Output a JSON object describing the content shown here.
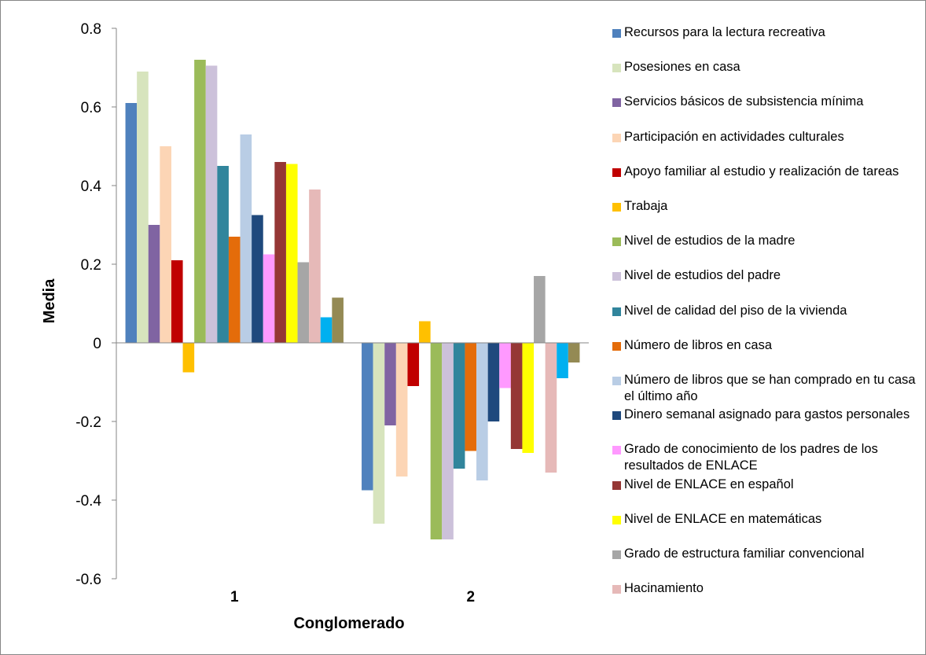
{
  "chart_data": {
    "type": "bar",
    "xlabel": "Conglomerado",
    "ylabel": "Media",
    "ylim": [
      -0.6,
      0.8
    ],
    "yticks": [
      "-0.6",
      "-0.4",
      "-0.2",
      "0",
      "0.2",
      "0.4",
      "0.6",
      "0.8"
    ],
    "categories": [
      "1",
      "2"
    ],
    "grid": false,
    "legend_position": "right",
    "series": [
      {
        "name": "Recursos para la lectura recreativa",
        "color": "#4F81BD",
        "values": [
          0.61,
          -0.375
        ]
      },
      {
        "name": "Posesiones en casa",
        "color": "#D7E4BD",
        "values": [
          0.69,
          -0.46
        ]
      },
      {
        "name": "Servicios básicos de subsistencia mínima",
        "color": "#8064A2",
        "values": [
          0.3,
          -0.21
        ]
      },
      {
        "name": "Participación en actividades culturales",
        "color": "#FCD5B5",
        "values": [
          0.5,
          -0.34
        ]
      },
      {
        "name": "Apoyo familiar al estudio y realización de tareas",
        "color": "#C00000",
        "values": [
          0.21,
          -0.11
        ]
      },
      {
        "name": "Trabaja",
        "color": "#FFC000",
        "values": [
          -0.075,
          0.055
        ]
      },
      {
        "name": "Nivel de estudios de la madre",
        "color": "#9BBB59",
        "values": [
          0.72,
          -0.5
        ]
      },
      {
        "name": "Nivel de estudios del padre",
        "color": "#CCC1DA",
        "values": [
          0.705,
          -0.5
        ]
      },
      {
        "name": "Nivel de calidad del piso de la vivienda",
        "color": "#31859C",
        "values": [
          0.45,
          -0.32
        ]
      },
      {
        "name": "Número de libros en casa",
        "color": "#E46C0A",
        "values": [
          0.27,
          -0.275
        ]
      },
      {
        "name": "Número de libros que se han comprado en tu casa el último año",
        "color": "#B9CDE5",
        "values": [
          0.53,
          -0.35
        ]
      },
      {
        "name": "Dinero semanal asignado para gastos personales",
        "color": "#1F497D",
        "values": [
          0.325,
          -0.2
        ]
      },
      {
        "name": "Grado de conocimiento de los padres de los resultados de ENLACE",
        "color": "#FF99FF",
        "values": [
          0.225,
          -0.115
        ]
      },
      {
        "name": "Nivel de ENLACE en español",
        "color": "#953735",
        "values": [
          0.46,
          -0.27
        ]
      },
      {
        "name": "Nivel de ENLACE en matemáticas",
        "color": "#FFFF00",
        "values": [
          0.455,
          -0.28
        ]
      },
      {
        "name": "Grado de estructura familiar convencional",
        "color": "#A6A6A6",
        "values": [
          0.205,
          0.17
        ]
      },
      {
        "name": "Hacinamiento",
        "color": "#E6B9B8",
        "values": [
          0.39,
          -0.33
        ]
      },
      {
        "name": "",
        "color": "#00B0F0",
        "values": [
          0.065,
          -0.09
        ]
      },
      {
        "name": "",
        "color": "#948A54",
        "values": [
          0.115,
          -0.05
        ]
      }
    ]
  }
}
